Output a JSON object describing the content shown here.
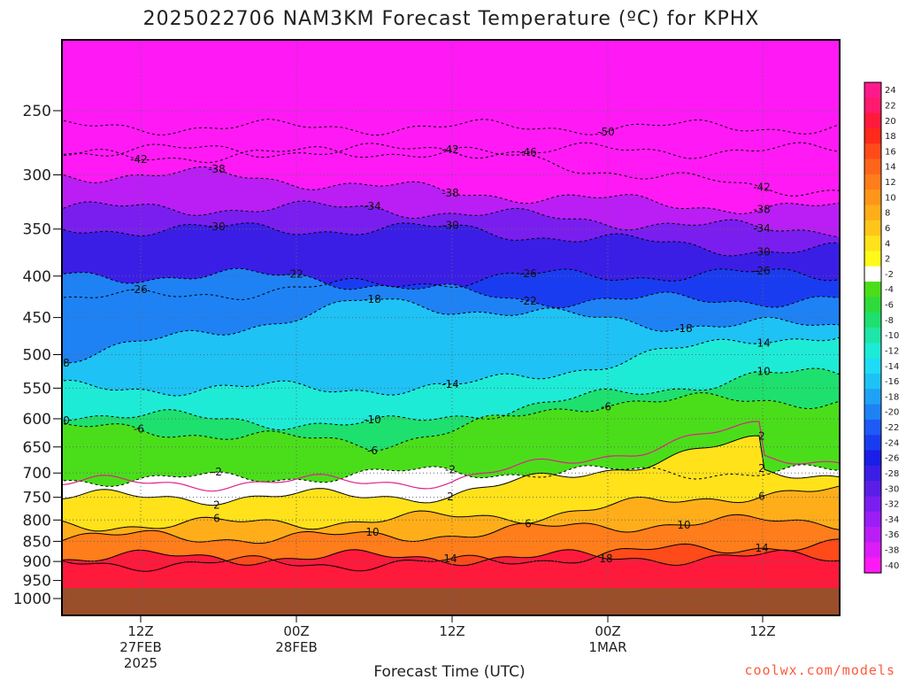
{
  "chart_data": {
    "type": "heatmap",
    "title": "2025022706 NAM3KM Forecast Temperature (ºC) for KPHX",
    "xlabel": "Forecast Time (UTC)",
    "ylabel": "",
    "credit": "coolwx.com/models",
    "y_axis": {
      "scale": "log-pressure",
      "ticks": [
        "250",
        "300",
        "350",
        "400",
        "450",
        "500",
        "550",
        "600",
        "650",
        "700",
        "750",
        "800",
        "850",
        "900",
        "950",
        "1000"
      ],
      "ylim": [
        1000,
        200
      ]
    },
    "x_axis": {
      "ticks": [
        {
          "line1": "12Z",
          "line2": "27FEB",
          "line3": "2025"
        },
        {
          "line1": "00Z",
          "line2": "28FEB",
          "line3": ""
        },
        {
          "line1": "12Z",
          "line2": "",
          "line3": ""
        },
        {
          "line1": "00Z",
          "line2": "1MAR",
          "line3": ""
        },
        {
          "line1": "12Z",
          "line2": "",
          "line3": ""
        }
      ]
    },
    "colorbar": {
      "labels": [
        "24",
        "22",
        "20",
        "18",
        "16",
        "14",
        "12",
        "10",
        "8",
        "6",
        "4",
        "2",
        "-2",
        "-4",
        "-6",
        "-8",
        "-10",
        "-12",
        "-14",
        "-16",
        "-18",
        "-20",
        "-22",
        "-24",
        "-26",
        "-28",
        "-30",
        "-32",
        "-34",
        "-36",
        "-38",
        "-40"
      ],
      "colors": [
        "#ff1a8c",
        "#ff1a6e",
        "#ff1a3c",
        "#ff2a1a",
        "#ff4a1a",
        "#ff651a",
        "#ff7d1a",
        "#ff961a",
        "#ffae1a",
        "#ffc61a",
        "#ffe21a",
        "#fffa1a",
        "#ffffff",
        "#4ade1a",
        "#2fdb3a",
        "#1ee06e",
        "#1ee6a6",
        "#1eebd6",
        "#1edcf5",
        "#1ec2f5",
        "#1ea2f5",
        "#1e82f5",
        "#1e5af5",
        "#1a3cf0",
        "#1a1ee6",
        "#3a1ee6",
        "#5a1ee6",
        "#7a1ef0",
        "#9a1ef5",
        "#ba1ef5",
        "#da1ef5",
        "#ff1af5"
      ]
    },
    "series": [
      {
        "level": -50,
        "values": [
          {
            "x": "1MAR 00Z",
            "p": 262
          }
        ]
      },
      {
        "level": -46,
        "values": [
          {
            "x": "28FEB 18Z",
            "p": 280
          }
        ]
      },
      {
        "level": -42,
        "values": [
          {
            "x": "27FEB 12Z",
            "p": 285
          },
          {
            "x": "28FEB 12Z",
            "p": 280
          },
          {
            "x": "1MAR 12Z",
            "p": 312
          }
        ]
      },
      {
        "level": -38,
        "values": [
          {
            "x": "27FEB 18Z",
            "p": 300
          },
          {
            "x": "28FEB 12Z",
            "p": 315
          },
          {
            "x": "1MAR 12Z",
            "p": 330
          }
        ]
      },
      {
        "level": -34,
        "values": [
          {
            "x": "28FEB 06Z",
            "p": 330
          },
          {
            "x": "1MAR 12Z",
            "p": 350
          }
        ]
      },
      {
        "level": -30,
        "values": [
          {
            "x": "27FEB 18Z",
            "p": 350
          },
          {
            "x": "28FEB 12Z",
            "p": 350
          },
          {
            "x": "1MAR 12Z",
            "p": 372
          }
        ]
      },
      {
        "level": -26,
        "values": [
          {
            "x": "27FEB 12Z",
            "p": 425
          },
          {
            "x": "28FEB 18Z",
            "p": 400
          },
          {
            "x": "1MAR 12Z",
            "p": 398
          }
        ]
      },
      {
        "level": -22,
        "values": [
          {
            "x": "28FEB 00Z",
            "p": 400
          },
          {
            "x": "28FEB 18Z",
            "p": 428
          }
        ]
      },
      {
        "level": -18,
        "values": [
          {
            "x": "27FEB 06Z",
            "p": 505
          },
          {
            "x": "28FEB 06Z",
            "p": 430
          },
          {
            "x": "1MAR 06Z",
            "p": 460
          }
        ]
      },
      {
        "level": -14,
        "values": [
          {
            "x": "28FEB 12Z",
            "p": 550
          },
          {
            "x": "1MAR 12Z",
            "p": 475
          }
        ]
      },
      {
        "level": -10,
        "values": [
          {
            "x": "27FEB 06Z",
            "p": 590
          },
          {
            "x": "28FEB 06Z",
            "p": 612
          },
          {
            "x": "1MAR 12Z",
            "p": 530
          }
        ]
      },
      {
        "level": -6,
        "values": [
          {
            "x": "27FEB 12Z",
            "p": 618
          },
          {
            "x": "28FEB 06Z",
            "p": 645
          },
          {
            "x": "1MAR 00Z",
            "p": 570
          }
        ]
      },
      {
        "level": -2,
        "values": [
          {
            "x": "27FEB 18Z",
            "p": 712
          },
          {
            "x": "28FEB 12Z",
            "p": 698
          }
        ]
      },
      {
        "level": 2,
        "values": [
          {
            "x": "27FEB 18Z",
            "p": 750
          },
          {
            "x": "28FEB 12Z",
            "p": 745
          },
          {
            "x": "1MAR 12Z",
            "p": 638
          },
          {
            "x": "1MAR 12Z",
            "p": 700
          }
        ]
      },
      {
        "level": 6,
        "values": [
          {
            "x": "27FEB 18Z",
            "p": 810
          },
          {
            "x": "28FEB 18Z",
            "p": 790
          },
          {
            "x": "1MAR 12Z",
            "p": 740
          }
        ]
      },
      {
        "level": 10,
        "values": [
          {
            "x": "28FEB 06Z",
            "p": 840
          },
          {
            "x": "1MAR 06Z",
            "p": 805
          }
        ]
      },
      {
        "level": 14,
        "values": [
          {
            "x": "28FEB 12Z",
            "p": 905
          },
          {
            "x": "1MAR 12Z",
            "p": 860
          }
        ]
      },
      {
        "level": 18,
        "values": [
          {
            "x": "1MAR 00Z",
            "p": 890
          }
        ]
      }
    ]
  }
}
